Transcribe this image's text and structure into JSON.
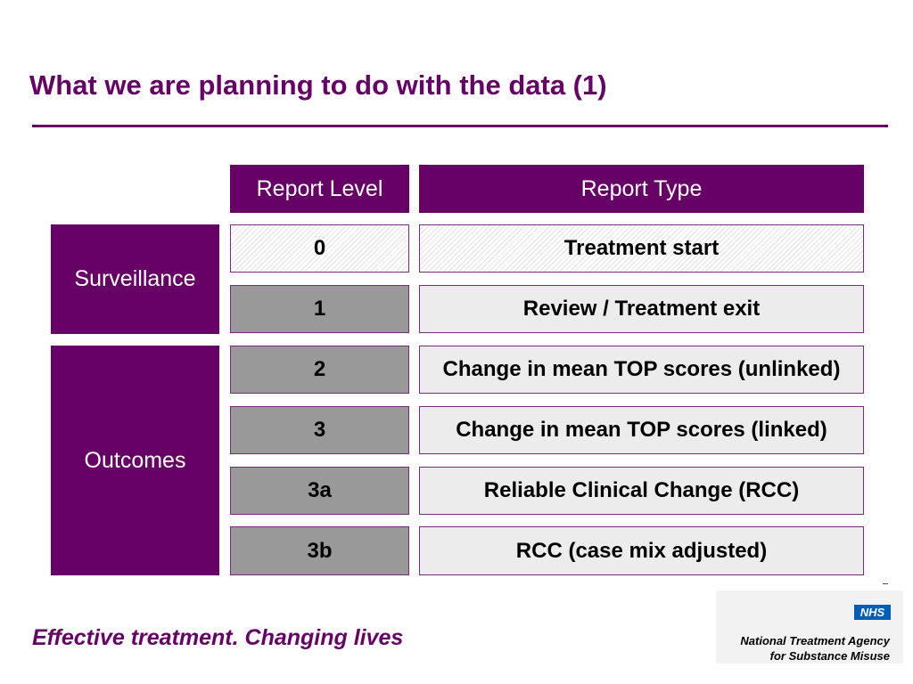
{
  "title": "What we are planning to do with the data (1)",
  "table": {
    "header_level": "Report Level",
    "header_type": "Report Type",
    "categories": [
      "Surveillance",
      "Outcomes"
    ],
    "rows": [
      {
        "level": "0",
        "type": "Treatment start"
      },
      {
        "level": "1",
        "type": "Review / Treatment exit"
      },
      {
        "level": "2",
        "type": "Change in mean TOP scores (unlinked)"
      },
      {
        "level": "3",
        "type": "Change in mean TOP scores (linked)"
      },
      {
        "level": "3a",
        "type": "Reliable Clinical Change (RCC)"
      },
      {
        "level": "3b",
        "type": "RCC (case mix adjusted)"
      }
    ]
  },
  "footer": {
    "tagline": "Effective treatment. Changing lives",
    "nhs": "NHS",
    "org_line1": "National Treatment Agency",
    "org_line2": "for Substance Misuse"
  },
  "colors": {
    "brand_purple": "#660066",
    "level_fill": "#999999",
    "type_fill": "#ececec",
    "nhs_blue": "#005eb8"
  }
}
